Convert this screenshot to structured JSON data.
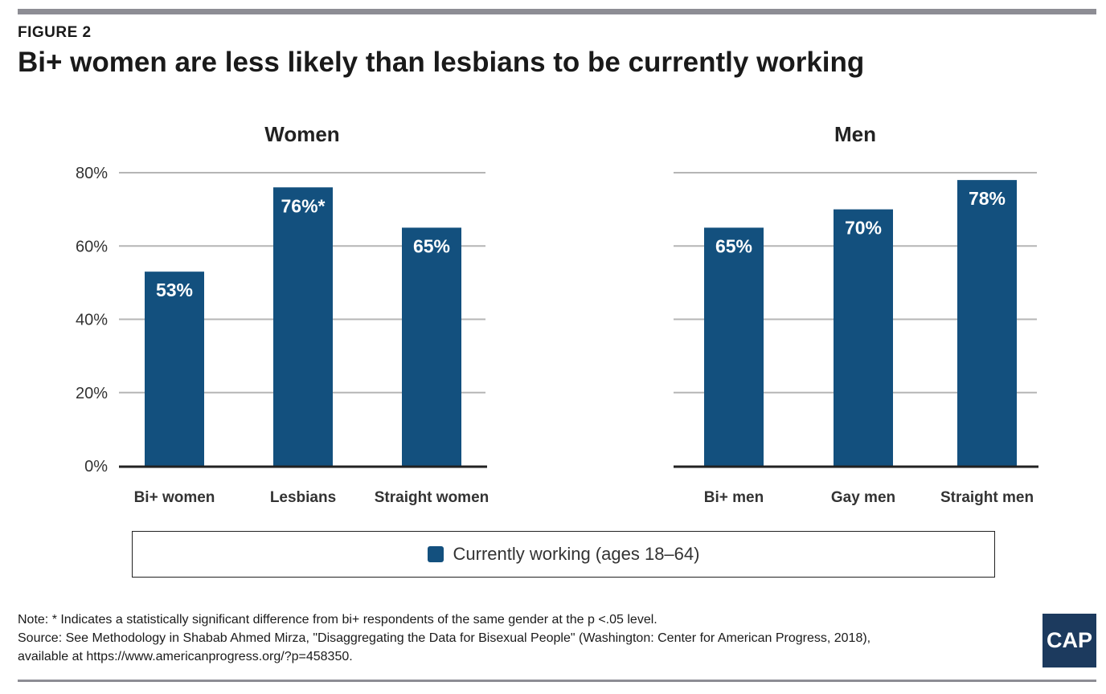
{
  "figure_label": "FIGURE 2",
  "title": "Bi+ women are less likely than lesbians to be currently working",
  "legend": "Currently working (ages 18–64)",
  "note": "Note: * Indicates a statistically significant difference from bi+ respondents of the same gender at the p <.05 level.",
  "source_line1": "Source: See Methodology in Shabab Ahmed Mirza, \"Disaggregating the Data for Bisexual People\" (Washington: Center for American Progress, 2018),",
  "source_line2": "available at https://www.americanprogress.org/?p=458350.",
  "logo_text": "CAP",
  "colors": {
    "bar": "#13507e",
    "grid": "#b5b5b5",
    "axis": "#222222"
  },
  "chart_data": [
    {
      "type": "bar",
      "title": "Women",
      "categories": [
        "Bi+ women",
        "Lesbians",
        "Straight women"
      ],
      "series": [
        {
          "name": "Currently working (ages 18–64)",
          "values": [
            53,
            76,
            65
          ]
        }
      ],
      "data_labels": [
        "53%",
        "76%*",
        "65%"
      ],
      "ylim": [
        0,
        80
      ],
      "yticks": [
        "0%",
        "20%",
        "40%",
        "60%",
        "80%"
      ],
      "grid": true
    },
    {
      "type": "bar",
      "title": "Men",
      "categories": [
        "Bi+ men",
        "Gay men",
        "Straight men"
      ],
      "series": [
        {
          "name": "Currently working (ages 18–64)",
          "values": [
            65,
            70,
            78
          ]
        }
      ],
      "data_labels": [
        "65%",
        "70%",
        "78%"
      ],
      "ylim": [
        0,
        80
      ],
      "yticks": [],
      "grid": true
    }
  ]
}
